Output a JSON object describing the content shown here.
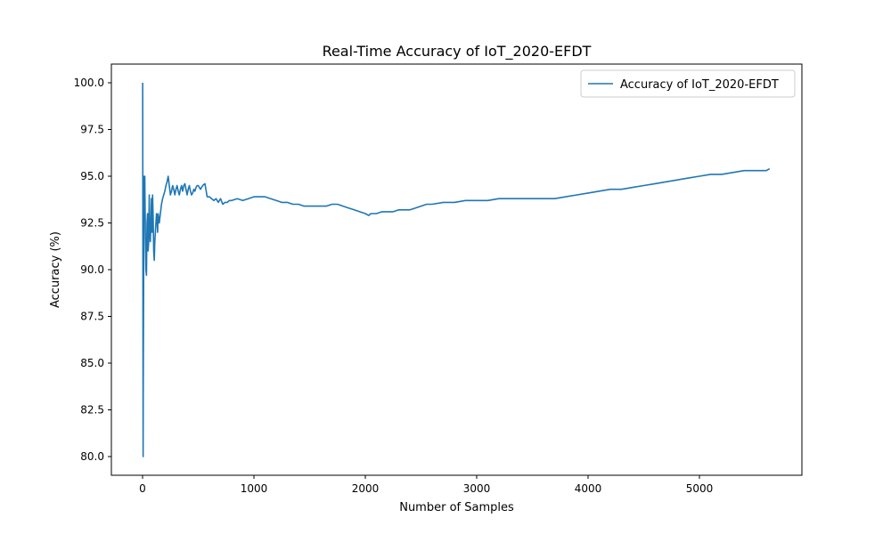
{
  "chart_data": {
    "type": "line",
    "title": "Real-Time Accuracy of IoT_2020-EFDT",
    "xlabel": "Number of Samples",
    "ylabel": "Accuracy (%)",
    "xlim": [
      -280,
      5920
    ],
    "ylim": [
      79.0,
      101.0
    ],
    "xticks": [
      0,
      1000,
      2000,
      3000,
      4000,
      5000
    ],
    "yticks": [
      80.0,
      82.5,
      85.0,
      87.5,
      90.0,
      92.5,
      95.0,
      97.5,
      100.0
    ],
    "grid": false,
    "legend_position": "upper-right",
    "series": [
      {
        "name": "Accuracy of IoT_2020-EFDT",
        "color": "#1f77b4",
        "x": [
          1,
          5,
          6,
          10,
          12,
          15,
          20,
          25,
          30,
          35,
          40,
          45,
          50,
          55,
          60,
          65,
          70,
          75,
          80,
          85,
          90,
          95,
          100,
          105,
          110,
          115,
          120,
          125,
          130,
          135,
          140,
          150,
          160,
          170,
          180,
          190,
          200,
          210,
          220,
          230,
          240,
          250,
          260,
          270,
          280,
          290,
          300,
          310,
          320,
          330,
          340,
          350,
          360,
          370,
          380,
          390,
          400,
          410,
          420,
          430,
          440,
          450,
          460,
          470,
          480,
          490,
          500,
          520,
          540,
          560,
          580,
          600,
          620,
          640,
          660,
          680,
          700,
          720,
          740,
          760,
          780,
          800,
          850,
          900,
          950,
          1000,
          1050,
          1100,
          1150,
          1200,
          1250,
          1300,
          1350,
          1400,
          1450,
          1500,
          1550,
          1600,
          1650,
          1700,
          1750,
          1800,
          1850,
          1900,
          1950,
          2000,
          2030,
          2050,
          2100,
          2150,
          2200,
          2250,
          2300,
          2350,
          2400,
          2450,
          2500,
          2550,
          2600,
          2700,
          2800,
          2900,
          3000,
          3100,
          3200,
          3300,
          3400,
          3500,
          3600,
          3700,
          3800,
          3900,
          4000,
          4100,
          4200,
          4300,
          4400,
          4500,
          4600,
          4700,
          4800,
          4900,
          5000,
          5100,
          5200,
          5300,
          5400,
          5500,
          5600,
          5630
        ],
        "y": [
          100.0,
          80.0,
          83.3,
          90.0,
          95.0,
          93.3,
          95.0,
          92.0,
          90.0,
          89.7,
          92.5,
          93.0,
          91.0,
          91.5,
          94.0,
          92.0,
          91.5,
          92.5,
          93.8,
          92.0,
          94.0,
          92.8,
          91.0,
          90.5,
          91.5,
          92.0,
          92.5,
          93.0,
          92.8,
          92.0,
          93.0,
          92.5,
          93.0,
          93.5,
          93.8,
          94.0,
          94.2,
          94.5,
          94.7,
          95.0,
          94.5,
          94.0,
          94.2,
          94.5,
          94.3,
          94.0,
          94.3,
          94.5,
          94.2,
          94.0,
          94.3,
          94.5,
          94.2,
          94.5,
          94.6,
          94.3,
          94.0,
          94.3,
          94.5,
          94.2,
          94.0,
          94.1,
          94.3,
          94.2,
          94.4,
          94.5,
          94.5,
          94.3,
          94.5,
          94.6,
          93.9,
          93.9,
          93.8,
          93.7,
          93.8,
          93.6,
          93.8,
          93.5,
          93.6,
          93.6,
          93.7,
          93.7,
          93.8,
          93.7,
          93.8,
          93.9,
          93.9,
          93.9,
          93.8,
          93.7,
          93.6,
          93.6,
          93.5,
          93.5,
          93.4,
          93.4,
          93.4,
          93.4,
          93.4,
          93.5,
          93.5,
          93.4,
          93.3,
          93.2,
          93.1,
          93.0,
          92.9,
          93.0,
          93.0,
          93.1,
          93.1,
          93.1,
          93.2,
          93.2,
          93.2,
          93.3,
          93.4,
          93.5,
          93.5,
          93.6,
          93.6,
          93.7,
          93.7,
          93.7,
          93.8,
          93.8,
          93.8,
          93.8,
          93.8,
          93.8,
          93.9,
          94.0,
          94.1,
          94.2,
          94.3,
          94.3,
          94.4,
          94.5,
          94.6,
          94.7,
          94.8,
          94.9,
          95.0,
          95.1,
          95.1,
          95.2,
          95.3,
          95.3,
          95.3,
          95.4
        ]
      }
    ]
  }
}
